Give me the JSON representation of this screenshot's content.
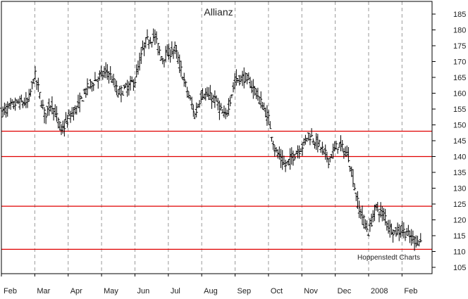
{
  "chart_data": {
    "type": "ohlc",
    "title": "Allianz",
    "credit": "Hoppenstedt Charts",
    "y_axis_side": "right",
    "ylim": [
      103,
      189
    ],
    "y_ticks": [
      105,
      110,
      115,
      120,
      125,
      130,
      135,
      140,
      145,
      150,
      155,
      160,
      165,
      170,
      175,
      180,
      185
    ],
    "x_tick_labels": [
      "Feb",
      "Mar",
      "Apr",
      "May",
      "Jun",
      "Jul",
      "Aug",
      "Sep",
      "Oct",
      "Nov",
      "Dec",
      "2008",
      "Feb"
    ],
    "xlim": [
      0,
      12.9
    ],
    "grid": true,
    "colors": {
      "price": "#000000",
      "reference_lines": "#e00000",
      "grid": "#9a9a9a"
    },
    "horizontal_lines": [
      148,
      140,
      124.3,
      110.7
    ],
    "price_series": {
      "name": "",
      "x": [
        0,
        0.5,
        0.8,
        1.0,
        1.3,
        1.5,
        1.8,
        2.0,
        2.3,
        2.6,
        2.9,
        3.2,
        3.5,
        3.8,
        4.0,
        4.3,
        4.6,
        4.8,
        5.2,
        5.5,
        5.8,
        6.0,
        6.4,
        6.7,
        7.0,
        7.3,
        7.6,
        8.0,
        8.2,
        8.5,
        8.8,
        9.0,
        9.2,
        9.5,
        9.8,
        10.1,
        10.4,
        10.7,
        11.0,
        11.2,
        11.5,
        11.6,
        11.8,
        12.0,
        12.3,
        12.6
      ],
      "close": [
        154,
        157,
        157,
        166,
        153,
        157,
        148,
        152,
        156,
        162,
        165,
        167,
        160,
        162,
        164,
        176,
        178,
        171,
        174,
        163,
        153,
        160,
        158,
        152,
        164,
        165,
        161,
        152,
        142,
        137,
        141,
        143,
        147,
        144,
        139,
        144,
        140,
        124,
        116,
        124,
        121,
        118,
        116,
        117,
        114,
        113
      ]
    }
  }
}
